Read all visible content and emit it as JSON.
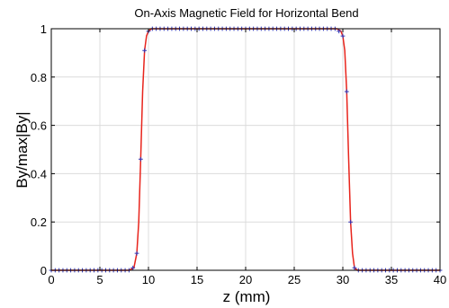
{
  "chart_data": {
    "type": "line",
    "title": "On-Axis Magnetic Field for Horizontal Bend",
    "xlabel": "z (mm)",
    "ylabel": "By/max|By|",
    "xlim": [
      0,
      40
    ],
    "ylim": [
      0,
      1
    ],
    "x_ticks": [
      "0",
      "5",
      "10",
      "15",
      "20",
      "25",
      "30",
      "35",
      "40"
    ],
    "y_ticks": [
      "0",
      "0.2",
      "0.4",
      "0.6",
      "0.8",
      "1"
    ],
    "grid": true,
    "legend": "none",
    "series": [
      {
        "style": "solid-line",
        "color": "#e8241c",
        "x": [
          0,
          5,
          8.0,
          8.5,
          8.8,
          9.0,
          9.2,
          9.4,
          9.6,
          9.8,
          10.0,
          10.3,
          10.6,
          11.0,
          15,
          20,
          25,
          29.4,
          29.8,
          30.0,
          30.2,
          30.4,
          30.6,
          30.8,
          31.0,
          31.2,
          31.5,
          32.0,
          35,
          40
        ],
        "y": [
          0,
          0,
          0.0,
          0.01,
          0.07,
          0.2,
          0.46,
          0.74,
          0.91,
          0.97,
          0.99,
          1.0,
          1.0,
          1.0,
          1.0,
          1.0,
          1.0,
          1.0,
          0.99,
          0.97,
          0.91,
          0.74,
          0.46,
          0.2,
          0.07,
          0.01,
          0.0,
          0.0,
          0,
          0
        ]
      },
      {
        "style": "plus-markers",
        "color": "#2c35b8",
        "x": [
          0,
          0.4,
          0.8,
          1.2,
          1.6,
          2.0,
          2.4,
          2.8,
          3.2,
          3.6,
          4.0,
          4.4,
          4.8,
          5.2,
          5.6,
          6.0,
          6.4,
          6.8,
          7.2,
          7.6,
          8.0,
          8.4,
          8.8,
          9.2,
          9.6,
          10.0,
          10.4,
          10.8,
          11.2,
          11.6,
          12.0,
          12.4,
          12.8,
          13.2,
          13.6,
          14.0,
          14.4,
          14.8,
          15.2,
          15.6,
          16.0,
          16.4,
          16.8,
          17.2,
          17.6,
          18.0,
          18.4,
          18.8,
          19.2,
          19.6,
          20.0,
          20.4,
          20.8,
          21.2,
          21.6,
          22.0,
          22.4,
          22.8,
          23.2,
          23.6,
          24.0,
          24.4,
          24.8,
          25.2,
          25.6,
          26.0,
          26.4,
          26.8,
          27.2,
          27.6,
          28.0,
          28.4,
          28.8,
          29.2,
          29.6,
          30.0,
          30.4,
          30.8,
          31.2,
          31.6,
          32.0,
          32.4,
          32.8,
          33.2,
          33.6,
          34.0,
          34.4,
          34.8,
          35.2,
          35.6,
          36.0,
          36.4,
          36.8,
          37.2,
          37.6,
          38.0,
          38.4,
          38.8,
          39.2,
          39.6,
          40.0
        ],
        "y": [
          0,
          0,
          0,
          0,
          0,
          0,
          0,
          0,
          0,
          0,
          0,
          0,
          0,
          0,
          0,
          0,
          0,
          0,
          0,
          0,
          0,
          0.01,
          0.07,
          0.46,
          0.91,
          0.99,
          1.0,
          1.0,
          1.0,
          1.0,
          1.0,
          1.0,
          1.0,
          1.0,
          1.0,
          1.0,
          1.0,
          1.0,
          1.0,
          1.0,
          1.0,
          1.0,
          1.0,
          1.0,
          1.0,
          1.0,
          1.0,
          1.0,
          1.0,
          1.0,
          1.0,
          1.0,
          1.0,
          1.0,
          1.0,
          1.0,
          1.0,
          1.0,
          1.0,
          1.0,
          1.0,
          1.0,
          1.0,
          1.0,
          1.0,
          1.0,
          1.0,
          1.0,
          1.0,
          1.0,
          1.0,
          1.0,
          1.0,
          1.0,
          0.99,
          0.97,
          0.74,
          0.2,
          0.01,
          0,
          0,
          0,
          0,
          0,
          0,
          0,
          0,
          0,
          0,
          0,
          0,
          0,
          0,
          0,
          0,
          0,
          0,
          0,
          0,
          0,
          0
        ]
      }
    ]
  }
}
